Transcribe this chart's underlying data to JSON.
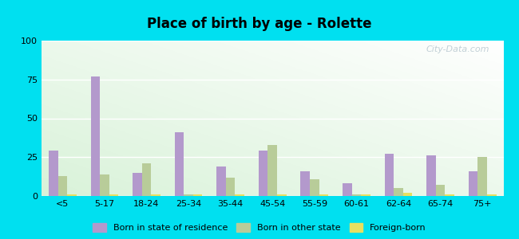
{
  "title": "Place of birth by age - Rolette",
  "categories": [
    "<5",
    "5-17",
    "18-24",
    "25-34",
    "35-44",
    "45-54",
    "55-59",
    "60-61",
    "62-64",
    "65-74",
    "75+"
  ],
  "born_in_state": [
    29,
    77,
    15,
    41,
    19,
    29,
    16,
    8,
    27,
    26,
    16
  ],
  "born_other_state": [
    13,
    14,
    21,
    1,
    12,
    33,
    11,
    1,
    5,
    7,
    25
  ],
  "foreign_born": [
    1,
    1,
    1,
    1,
    1,
    1,
    1,
    1,
    2,
    1,
    1
  ],
  "color_state": "#b399cc",
  "color_other": "#b8cc99",
  "color_foreign": "#e8e060",
  "ylim": [
    0,
    100
  ],
  "yticks": [
    0,
    25,
    50,
    75,
    100
  ],
  "outer_bg": "#00e0f0",
  "watermark": "City-Data.com",
  "legend_labels": [
    "Born in state of residence",
    "Born in other state",
    "Foreign-born"
  ]
}
